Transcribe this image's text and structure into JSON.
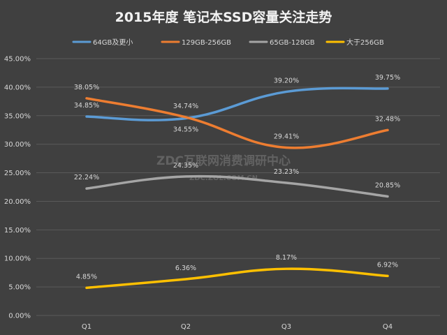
{
  "chart_data": {
    "type": "line",
    "title": "2015年度 笔记本SSD容量关注走势",
    "categories": [
      "Q1",
      "Q2",
      "Q3",
      "Q4"
    ],
    "ylim": [
      0,
      45
    ],
    "ytick_step": 5,
    "ytick_suffix": "%",
    "grid": true,
    "legend_position": "top",
    "series": [
      {
        "name": "64GB及更小",
        "color": "#5b9bd5",
        "values": [
          34.85,
          34.55,
          39.2,
          39.75
        ],
        "labels": [
          "34.85%",
          "34.55%",
          "39.20%",
          "39.75%"
        ],
        "label_side": [
          "above",
          "below",
          "above",
          "above"
        ]
      },
      {
        "name": "129GB-256GB",
        "color": "#ed7d31",
        "values": [
          38.05,
          34.74,
          29.41,
          32.48
        ],
        "labels": [
          "38.05%",
          "34.74%",
          "29.41%",
          "32.48%"
        ],
        "label_side": [
          "above",
          "above",
          "above",
          "above"
        ]
      },
      {
        "name": "65GB-128GB",
        "color": "#a5a5a5",
        "values": [
          22.24,
          24.35,
          23.23,
          20.85
        ],
        "labels": [
          "22.24%",
          "24.35%",
          "23.23%",
          "20.85%"
        ],
        "label_side": [
          "above",
          "above",
          "above",
          "above"
        ]
      },
      {
        "name": "大于256GB",
        "color": "#ffc000",
        "values": [
          4.85,
          6.36,
          8.17,
          6.92
        ],
        "labels": [
          "4.85%",
          "6.36%",
          "8.17%",
          "6.92%"
        ],
        "label_side": [
          "above",
          "above",
          "above",
          "above"
        ]
      }
    ]
  },
  "watermark": {
    "line1": "ZDC互联网消费调研中心",
    "line2": "ZDC.ZOL.COM.CN"
  }
}
